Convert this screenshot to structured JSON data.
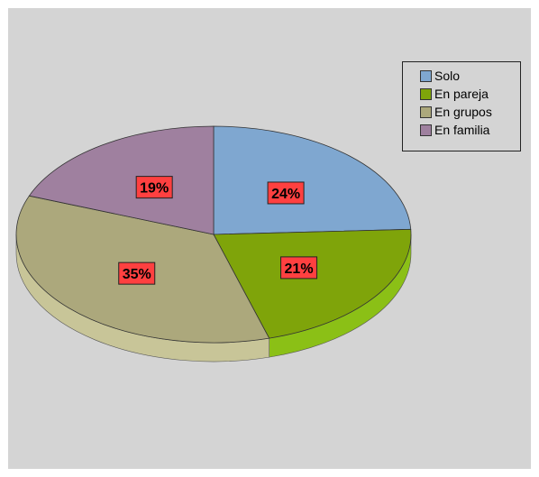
{
  "colors": {
    "background": "#d4d4d4",
    "label_bg": "#ff4040",
    "slice_top": [
      "#7fa7d0",
      "#7fa40a",
      "#aca87c",
      "#9f809f"
    ],
    "slice_side": [
      "#5f80a8",
      "#8bc016",
      "#c8c598",
      "#7a5f7a"
    ]
  },
  "chart_data": {
    "type": "pie",
    "categories": [
      "Solo",
      "En pareja",
      "En grupos",
      "En familia"
    ],
    "values": [
      24,
      21,
      35,
      19
    ],
    "labels": [
      "24%",
      "21%",
      "35%",
      "19%"
    ],
    "start_angle_deg": -90,
    "three_d": true,
    "legend_position": "top-right",
    "title": ""
  },
  "legend": {
    "items": [
      "Solo",
      "En pareja",
      "En grupos",
      "En familia"
    ]
  }
}
